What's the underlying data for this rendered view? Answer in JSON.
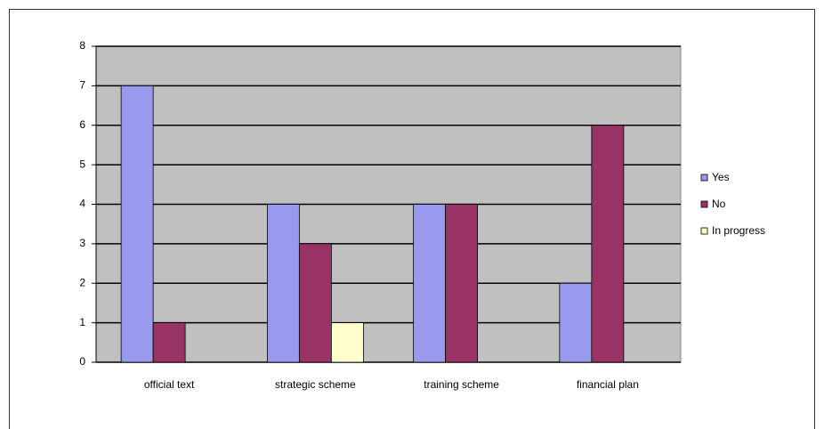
{
  "chart_data": {
    "type": "bar",
    "categories": [
      "official text",
      "strategic scheme",
      "training scheme",
      "financial plan"
    ],
    "series": [
      {
        "name": "Yes",
        "color": "#9999ee",
        "values": [
          7,
          4,
          4,
          2
        ]
      },
      {
        "name": "No",
        "color": "#993366",
        "values": [
          1,
          3,
          4,
          6
        ]
      },
      {
        "name": "In progress",
        "color": "#ffffcc",
        "values": [
          0,
          1,
          0,
          0
        ]
      }
    ],
    "ylim": [
      0,
      8
    ],
    "yticks": [
      0,
      1,
      2,
      3,
      4,
      5,
      6,
      7,
      8
    ],
    "grid": true,
    "legend": "right"
  }
}
